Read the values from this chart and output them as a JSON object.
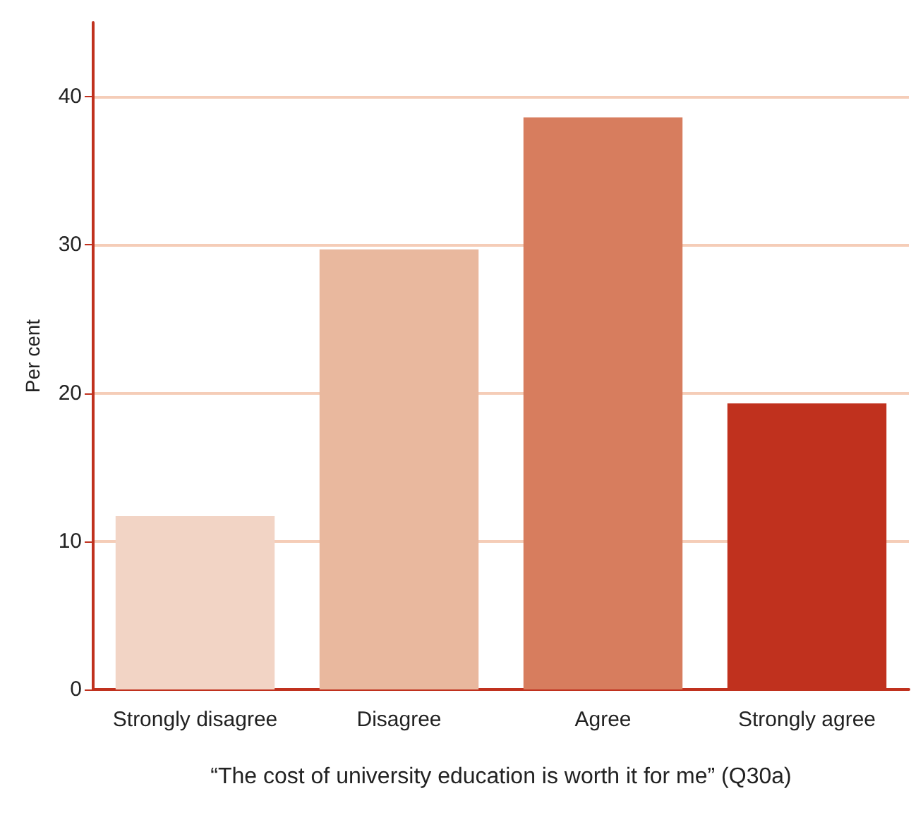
{
  "chart_data": {
    "type": "bar",
    "xlabel": "“The cost of university education is worth it for me” (Q30a)",
    "ylabel": "Per cent",
    "categories": [
      "Strongly disagree",
      "Disagree",
      "Agree",
      "Strongly agree"
    ],
    "values": [
      11.7,
      29.7,
      38.6,
      19.3
    ],
    "colors": [
      "#f2d4c5",
      "#e9b89e",
      "#d77d5e",
      "#c0311e"
    ],
    "ylim": [
      0,
      45
    ],
    "yticks": [
      0,
      10,
      20,
      30,
      40
    ],
    "grid": "y"
  }
}
